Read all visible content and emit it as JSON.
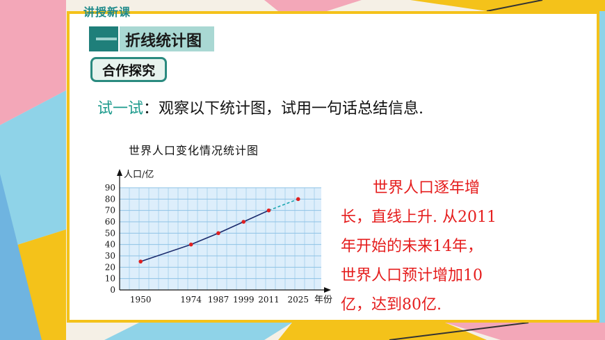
{
  "header": {
    "section_tag": "讲授新课",
    "section_title": "折线统计图",
    "badge": "合作探究"
  },
  "instruction": {
    "lead": "试一试",
    "text": "：观察以下统计图，试用一句话总结信息."
  },
  "chart_data": {
    "type": "line",
    "title": "世界人口变化情况统计图",
    "ylabel": "人口/亿",
    "xlabel": "年份",
    "x": [
      1950,
      1974,
      1987,
      1999,
      2011,
      2025
    ],
    "x_tick_labels": [
      "1950",
      "1974",
      "1987",
      "1999",
      "2011",
      "2025"
    ],
    "y_ticks": [
      0,
      10,
      20,
      30,
      40,
      50,
      60,
      70,
      80,
      90
    ],
    "y_tick_labels": [
      "0",
      "10",
      "20",
      "30",
      "40",
      "50",
      "60",
      "70",
      "80",
      "90"
    ],
    "ylim": [
      0,
      90
    ],
    "series": [
      {
        "values": [
          25,
          40,
          50,
          60,
          70,
          80
        ],
        "dashed_from_index": 4
      }
    ],
    "grid": true,
    "colors": {
      "line": "#1a2a6c",
      "points": "#e02020",
      "plot_bg": "#ddeefb",
      "grid": "#8ec3e6"
    }
  },
  "description": {
    "lines": [
      "世界人口逐年增",
      "长，直线上升. 从2011",
      "年开始的未来14年，",
      "世界人口预计增加10",
      "亿，达到80亿."
    ]
  }
}
